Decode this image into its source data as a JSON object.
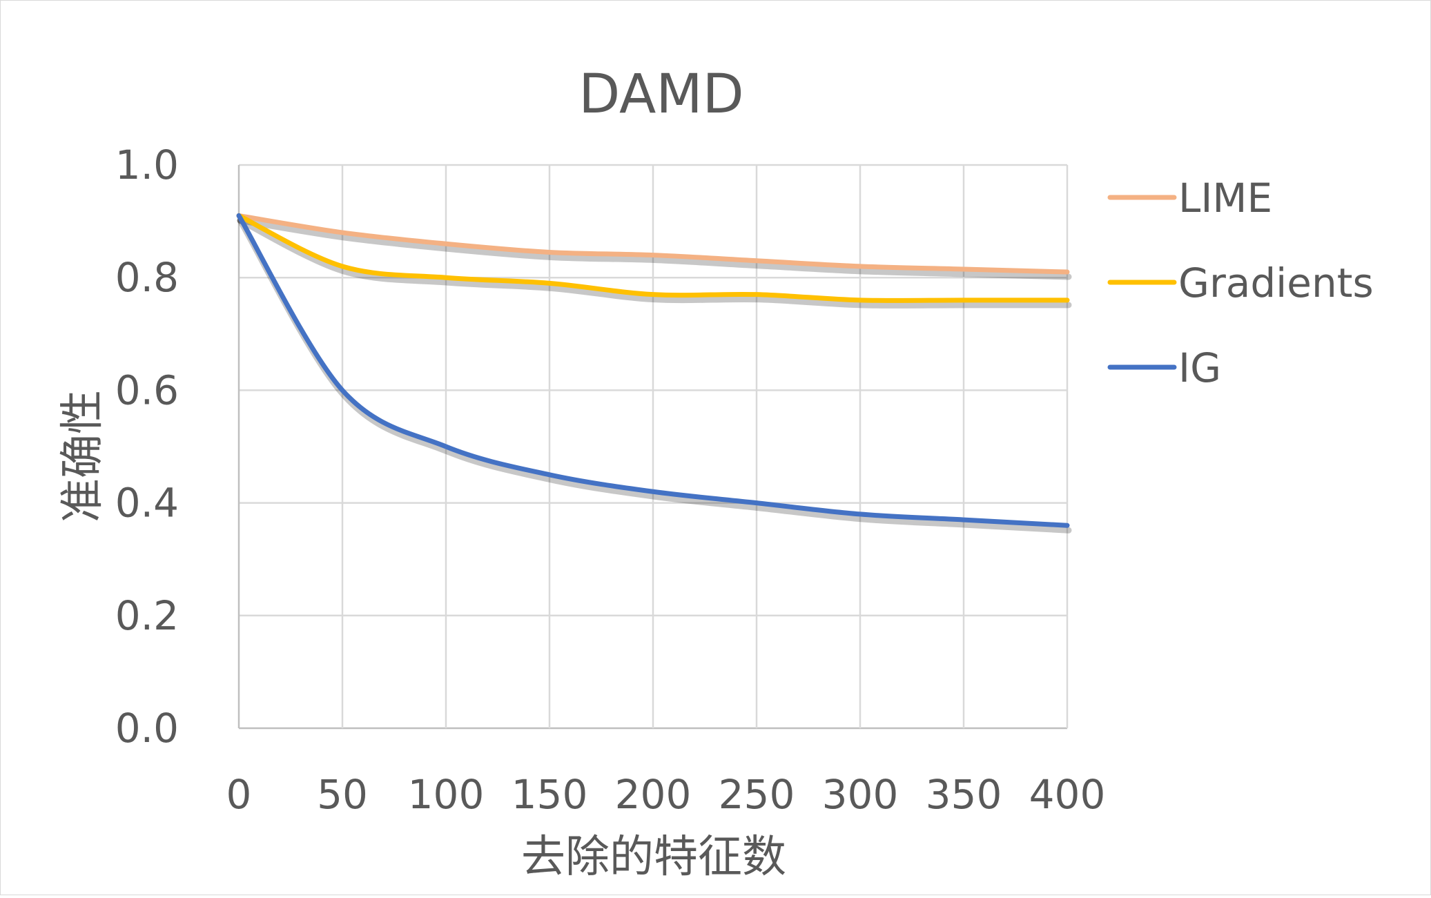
{
  "chart_data": {
    "type": "line",
    "title": "DAMD",
    "xlabel": "去除的特征数",
    "ylabel": "准确性",
    "x": [
      0,
      50,
      100,
      150,
      200,
      250,
      300,
      350,
      400
    ],
    "xlim": [
      0,
      400
    ],
    "ylim": [
      0,
      1.0
    ],
    "x_ticks": [
      "0",
      "50",
      "100",
      "150",
      "200",
      "250",
      "300",
      "350",
      "400"
    ],
    "y_ticks": [
      "0.0",
      "0.2",
      "0.4",
      "0.6",
      "0.8",
      "1.0"
    ],
    "grid": true,
    "legend_position": "right",
    "series": [
      {
        "name": "LIME",
        "color": "#F4B183",
        "values": [
          0.91,
          0.88,
          0.86,
          0.845,
          0.84,
          0.83,
          0.82,
          0.815,
          0.81
        ]
      },
      {
        "name": "Gradients",
        "color": "#FFC000",
        "values": [
          0.91,
          0.82,
          0.8,
          0.79,
          0.77,
          0.77,
          0.76,
          0.76,
          0.76
        ]
      },
      {
        "name": "IG",
        "color": "#4472C4",
        "values": [
          0.91,
          0.6,
          0.5,
          0.45,
          0.42,
          0.4,
          0.38,
          0.37,
          0.36
        ]
      }
    ]
  }
}
